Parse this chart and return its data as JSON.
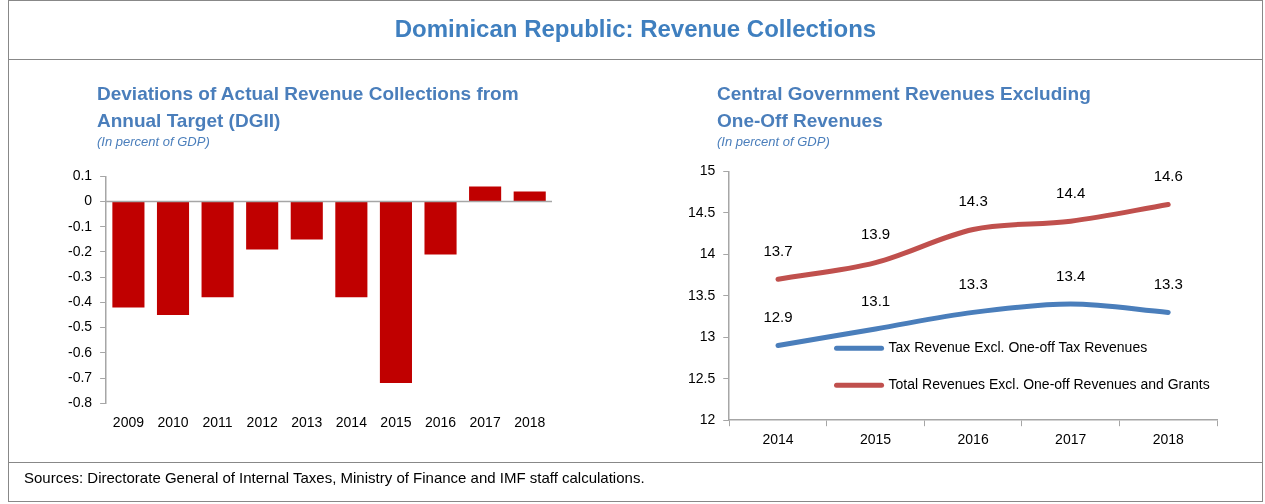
{
  "chart_data": [
    {
      "type": "other",
      "title": "Dominican Republic: Revenue Collections",
      "annotations": [
        "Sources: Directorate General of Internal Taxes, Ministry of Finance and IMF staff calculations."
      ]
    },
    {
      "type": "bar",
      "title": "Deviations of Actual Revenue Collections from Annual Target (DGII)",
      "subtitle": "(In percent  of GDP)",
      "categories": [
        "2009",
        "2010",
        "2011",
        "2012",
        "2013",
        "2014",
        "2015",
        "2016",
        "2017",
        "2018"
      ],
      "values": [
        -0.42,
        -0.45,
        -0.38,
        -0.19,
        -0.15,
        -0.38,
        -0.72,
        -0.21,
        0.06,
        0.04
      ],
      "color": "#c00000",
      "ylim": [
        -0.8,
        0.1
      ],
      "yticks": [
        -0.8,
        -0.7,
        -0.6,
        -0.5,
        -0.4,
        -0.3,
        -0.2,
        -0.1,
        0,
        0.1
      ],
      "grid": false,
      "legend": false,
      "ref_lines": [
        {
          "axis": "y",
          "value": 0,
          "color": "#a6a6a6"
        }
      ]
    },
    {
      "type": "line",
      "title": "Central Government Revenues Excluding One-Off Revenues",
      "subtitle": "(In percent  of GDP)",
      "categories": [
        "2014",
        "2015",
        "2016",
        "2017",
        "2018"
      ],
      "series": [
        {
          "name": "Tax Revenue Excl. One-off Tax Revenues",
          "color": "#4a7ebb",
          "values": [
            12.9,
            13.1,
            13.3,
            13.4,
            13.3
          ]
        },
        {
          "name": "Total Revenues Excl. One-off Revenues and Grants",
          "color": "#c0504d",
          "values": [
            13.7,
            13.9,
            14.3,
            14.4,
            14.6
          ]
        }
      ],
      "ylim": [
        12,
        15
      ],
      "yticks": [
        12,
        12.5,
        13,
        13.5,
        14,
        14.5,
        15
      ],
      "grid": false,
      "legend": "bottom right",
      "data_labels": true,
      "marker": "none",
      "line_style": "solid"
    }
  ]
}
